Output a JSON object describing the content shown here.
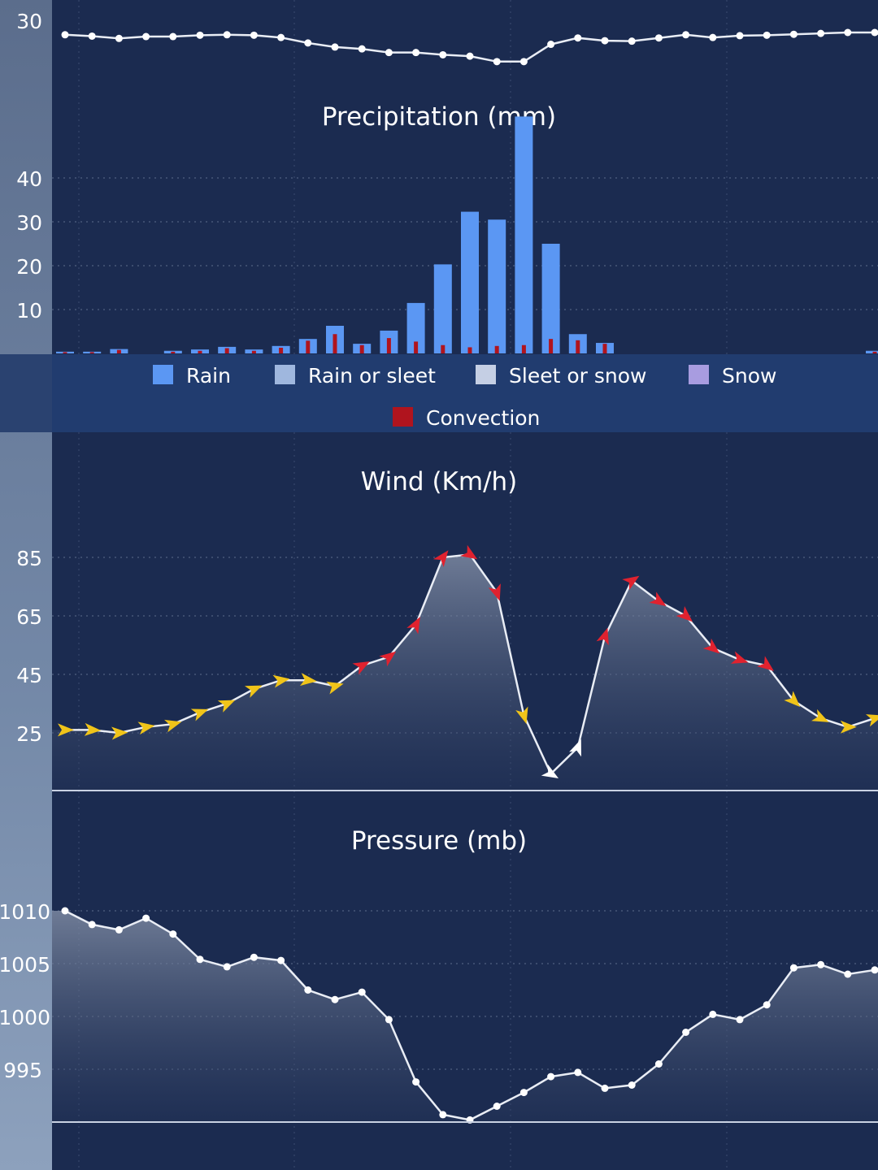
{
  "chart_data": [
    {
      "type": "line",
      "title": "",
      "x_count": 31,
      "values": [
        29.5,
        29.2,
        28.7,
        29.1,
        29.1,
        29.4,
        29.5,
        29.4,
        28.9,
        27.7,
        26.8,
        26.4,
        25.6,
        25.6,
        25.1,
        24.8,
        23.6,
        23.6,
        27.4,
        28.8,
        28.2,
        28.1,
        28.8,
        29.5,
        28.9,
        29.3,
        29.4,
        29.6,
        29.8,
        30.0,
        30.0
      ],
      "yticks": [
        "30"
      ]
    },
    {
      "type": "bar",
      "title": "Precipitation (mm)",
      "ylim": [
        0,
        54
      ],
      "yticks": [
        "40",
        "30",
        "20",
        "10"
      ],
      "series": [
        {
          "name": "Rain",
          "values": [
            0.4,
            0.4,
            1.0,
            0,
            0.6,
            0.9,
            1.5,
            0.9,
            1.7,
            3.3,
            6.3,
            2.2,
            5.2,
            11.5,
            20.3,
            32.3,
            30.5,
            54.0,
            25.0,
            4.4,
            2.4,
            0,
            0,
            0,
            0,
            0,
            0,
            0,
            0,
            0,
            0.6
          ]
        },
        {
          "name": "Convection",
          "values": [
            0.3,
            0.3,
            0.8,
            0,
            0.4,
            0.6,
            1.2,
            0.6,
            1.3,
            2.9,
            4.4,
            1.9,
            3.5,
            2.7,
            1.9,
            1.4,
            1.7,
            1.9,
            3.3,
            3.0,
            2.2,
            0,
            0,
            0,
            0,
            0,
            0,
            0,
            0,
            0,
            0.4
          ]
        }
      ],
      "legend": [
        {
          "name": "Rain",
          "color": "#5b97f3"
        },
        {
          "name": "Rain or sleet",
          "color": "#9fb7de"
        },
        {
          "name": "Sleet or snow",
          "color": "#c5cfe4"
        },
        {
          "name": "Snow",
          "color": "#a89ce0"
        },
        {
          "name": "Convection",
          "color": "#b0141e"
        }
      ]
    },
    {
      "type": "area",
      "title": "Wind (Km/h)",
      "ylim": [
        5,
        90
      ],
      "yticks": [
        "85",
        "65",
        "45",
        "25"
      ],
      "values": [
        26,
        26,
        25,
        27,
        28,
        32,
        35,
        40,
        43,
        43,
        41,
        48,
        51,
        62,
        85,
        86,
        73,
        31,
        11,
        20,
        58,
        77,
        70,
        65,
        54,
        50,
        48,
        36,
        30,
        27,
        30
      ],
      "severity": [
        "low",
        "low",
        "low",
        "low",
        "low",
        "low",
        "low",
        "low",
        "low",
        "low",
        "low",
        "high",
        "high",
        "high",
        "high",
        "high",
        "high",
        "low",
        "calm",
        "calm",
        "high",
        "high",
        "high",
        "high",
        "high",
        "high",
        "high",
        "low",
        "low",
        "low",
        "low"
      ],
      "arrow_colors": {
        "low": "#f0c419",
        "high": "#e0222f",
        "calm": "#ffffff"
      }
    },
    {
      "type": "area",
      "title": "Pressure (mb)",
      "ylim": [
        990,
        1010
      ],
      "yticks": [
        "1010",
        "1005",
        "1000",
        "995"
      ],
      "values": [
        1010.0,
        1008.7,
        1008.2,
        1009.3,
        1007.8,
        1005.4,
        1004.7,
        1005.6,
        1005.3,
        1002.5,
        1001.6,
        1002.3,
        999.7,
        993.8,
        990.7,
        990.2,
        991.5,
        992.8,
        994.3,
        994.7,
        993.2,
        993.5,
        995.5,
        998.5,
        1000.2,
        999.7,
        1001.1,
        1004.6,
        1004.9,
        1004.0,
        1004.4
      ]
    }
  ]
}
